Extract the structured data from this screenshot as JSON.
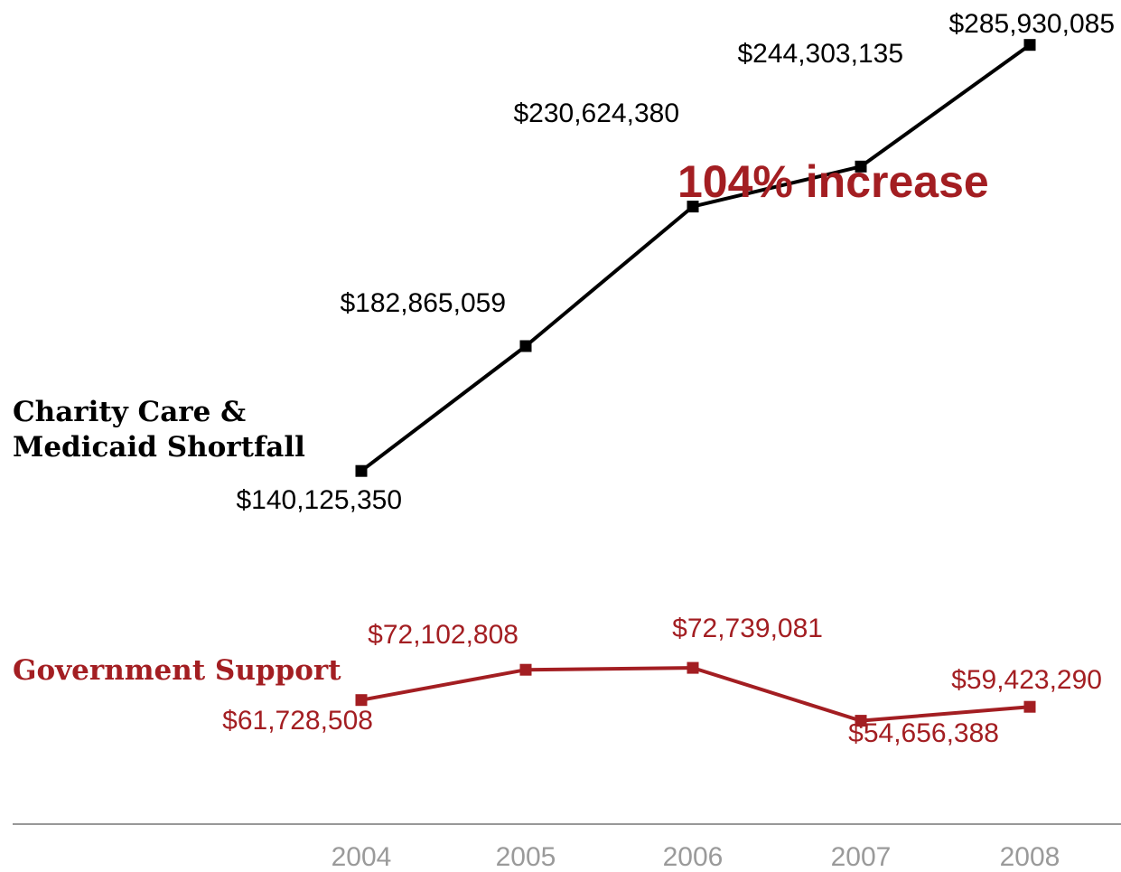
{
  "chart_data": {
    "type": "line",
    "title": "",
    "xlabel": "",
    "ylabel": "",
    "categories": [
      "2004",
      "2005",
      "2006",
      "2007",
      "2008"
    ],
    "series": [
      {
        "name": "Charity Care & Medicaid Shortfall",
        "name_lines": [
          "Charity Care &",
          "Medicaid Shortfall"
        ],
        "color": "#000000",
        "values": [
          140125350,
          182865059,
          230624380,
          244303135,
          285930085
        ],
        "labels": [
          "$140,125,350",
          "$182,865,059",
          "$230,624,380",
          "$244,303,135",
          "$285,930,085"
        ]
      },
      {
        "name": "Government Support",
        "name_lines": [
          "Government Support"
        ],
        "color": "#a31e22",
        "values": [
          61728508,
          72102808,
          72739081,
          54656388,
          59423290
        ],
        "labels": [
          "$61,728,508",
          "$72,102,808",
          "$72,739,081",
          "$54,656,388",
          "$59,423,290"
        ]
      }
    ],
    "annotation": {
      "text": "104% increase",
      "color": "#a31e22"
    },
    "axis_line_color": "#777777",
    "tick_label_color": "#9a9a9a",
    "grid": false,
    "legend": "inline-left"
  }
}
